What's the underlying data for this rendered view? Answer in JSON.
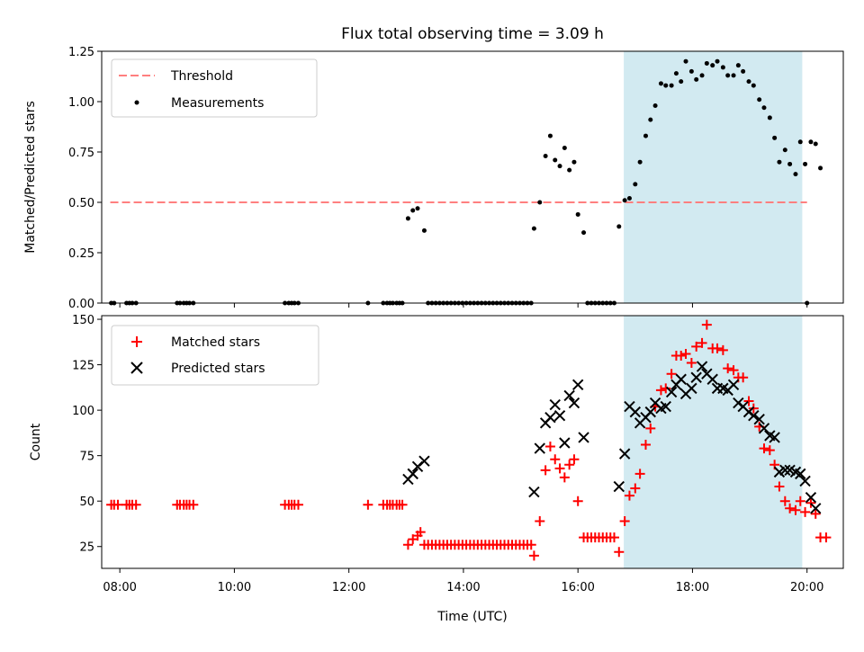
{
  "title": "Flux total observing time = 3.09 h",
  "colors": {
    "threshold": "#ff7f7f",
    "measurement": "#000000",
    "matched": "#ff0000",
    "predicted": "#000000",
    "shade": "#add8e6"
  },
  "chart_data": [
    {
      "type": "scatter",
      "ylabel": "Matched/Predicted stars",
      "xlabel": "",
      "xlim": [
        "07:41",
        "20:38"
      ],
      "ylim": [
        0,
        1.25
      ],
      "yticks": [
        "0.00",
        "0.25",
        "0.50",
        "0.75",
        "1.00",
        "1.25"
      ],
      "shaded_span": [
        "16:48",
        "19:55"
      ],
      "legend": {
        "placement": "top-left",
        "threshold_label": "Threshold",
        "measurement_label": "Measurements"
      },
      "threshold": {
        "value": 0.5,
        "x_start": "07:50",
        "x_end": "20:00"
      },
      "measurements": [
        [
          "07:51",
          0
        ],
        [
          "07:54",
          0
        ],
        [
          "08:07",
          0
        ],
        [
          "08:10",
          0
        ],
        [
          "08:13",
          0
        ],
        [
          "08:17",
          0
        ],
        [
          "09:00",
          0
        ],
        [
          "09:03",
          0
        ],
        [
          "09:07",
          0
        ],
        [
          "09:10",
          0
        ],
        [
          "09:13",
          0
        ],
        [
          "09:17",
          0
        ],
        [
          "10:53",
          0
        ],
        [
          "10:57",
          0
        ],
        [
          "11:00",
          0
        ],
        [
          "11:03",
          0
        ],
        [
          "11:07",
          0
        ],
        [
          "12:20",
          0
        ],
        [
          "12:36",
          0
        ],
        [
          "12:40",
          0
        ],
        [
          "12:43",
          0
        ],
        [
          "12:46",
          0
        ],
        [
          "12:50",
          0
        ],
        [
          "12:53",
          0
        ],
        [
          "12:56",
          0
        ],
        [
          "13:02",
          0.42
        ],
        [
          "13:07",
          0.46
        ],
        [
          "13:12",
          0.47
        ],
        [
          "13:19",
          0.36
        ],
        [
          "13:23",
          0
        ],
        [
          "13:27",
          0
        ],
        [
          "13:31",
          0
        ],
        [
          "13:35",
          0
        ],
        [
          "13:39",
          0
        ],
        [
          "13:43",
          0
        ],
        [
          "13:47",
          0
        ],
        [
          "13:51",
          0
        ],
        [
          "13:55",
          0
        ],
        [
          "13:59",
          0
        ],
        [
          "14:03",
          0
        ],
        [
          "14:07",
          0
        ],
        [
          "14:11",
          0
        ],
        [
          "14:15",
          0
        ],
        [
          "14:19",
          0
        ],
        [
          "14:23",
          0
        ],
        [
          "14:27",
          0
        ],
        [
          "14:31",
          0
        ],
        [
          "14:35",
          0
        ],
        [
          "14:39",
          0
        ],
        [
          "14:43",
          0
        ],
        [
          "14:47",
          0
        ],
        [
          "14:51",
          0
        ],
        [
          "14:55",
          0
        ],
        [
          "14:59",
          0
        ],
        [
          "15:03",
          0
        ],
        [
          "15:07",
          0
        ],
        [
          "15:11",
          0
        ],
        [
          "15:14",
          0.37
        ],
        [
          "15:20",
          0.5
        ],
        [
          "15:26",
          0.73
        ],
        [
          "15:31",
          0.83
        ],
        [
          "15:36",
          0.71
        ],
        [
          "15:41",
          0.68
        ],
        [
          "15:46",
          0.77
        ],
        [
          "15:51",
          0.66
        ],
        [
          "15:56",
          0.7
        ],
        [
          "16:00",
          0.44
        ],
        [
          "16:06",
          0.35
        ],
        [
          "16:10",
          0
        ],
        [
          "16:14",
          0
        ],
        [
          "16:18",
          0
        ],
        [
          "16:22",
          0
        ],
        [
          "16:26",
          0
        ],
        [
          "16:30",
          0
        ],
        [
          "16:34",
          0
        ],
        [
          "16:38",
          0
        ],
        [
          "16:43",
          0.38
        ],
        [
          "16:49",
          0.51
        ],
        [
          "16:54",
          0.52
        ],
        [
          "17:00",
          0.59
        ],
        [
          "17:05",
          0.7
        ],
        [
          "17:11",
          0.83
        ],
        [
          "17:16",
          0.91
        ],
        [
          "17:21",
          0.98
        ],
        [
          "17:27",
          1.09
        ],
        [
          "17:32",
          1.08
        ],
        [
          "17:38",
          1.08
        ],
        [
          "17:43",
          1.14
        ],
        [
          "17:48",
          1.1
        ],
        [
          "17:53",
          1.2
        ],
        [
          "17:59",
          1.15
        ],
        [
          "18:04",
          1.11
        ],
        [
          "18:10",
          1.13
        ],
        [
          "18:15",
          1.19
        ],
        [
          "18:21",
          1.18
        ],
        [
          "18:26",
          1.2
        ],
        [
          "18:32",
          1.17
        ],
        [
          "18:37",
          1.13
        ],
        [
          "18:43",
          1.13
        ],
        [
          "18:48",
          1.18
        ],
        [
          "18:53",
          1.15
        ],
        [
          "18:59",
          1.1
        ],
        [
          "19:04",
          1.08
        ],
        [
          "19:10",
          1.01
        ],
        [
          "19:15",
          0.97
        ],
        [
          "19:21",
          0.92
        ],
        [
          "19:26",
          0.82
        ],
        [
          "19:31",
          0.7
        ],
        [
          "19:37",
          0.76
        ],
        [
          "19:42",
          0.69
        ],
        [
          "19:48",
          0.64
        ],
        [
          "19:53",
          0.8
        ],
        [
          "19:58",
          0.69
        ],
        [
          "20:04",
          0.8
        ],
        [
          "20:09",
          0.79
        ],
        [
          "20:14",
          0.67
        ],
        [
          "20:00",
          0
        ]
      ]
    },
    {
      "type": "scatter",
      "xlabel": "Time (UTC)",
      "ylabel": "Count",
      "xlim": [
        "07:41",
        "20:38"
      ],
      "ylim": [
        13,
        152
      ],
      "xticks": [
        "08:00",
        "10:00",
        "12:00",
        "14:00",
        "16:00",
        "18:00",
        "20:00"
      ],
      "yticks": [
        "25",
        "50",
        "75",
        "100",
        "125",
        "150"
      ],
      "shaded_span": [
        "16:48",
        "19:55"
      ],
      "legend": {
        "placement": "top-left",
        "matched_label": "Matched stars",
        "predicted_label": "Predicted stars"
      },
      "matched": [
        [
          "07:51",
          48
        ],
        [
          "07:54",
          48
        ],
        [
          "07:58",
          48
        ],
        [
          "08:07",
          48
        ],
        [
          "08:10",
          48
        ],
        [
          "08:13",
          48
        ],
        [
          "08:17",
          48
        ],
        [
          "09:00",
          48
        ],
        [
          "09:03",
          48
        ],
        [
          "09:07",
          48
        ],
        [
          "09:10",
          48
        ],
        [
          "09:13",
          48
        ],
        [
          "09:17",
          48
        ],
        [
          "10:53",
          48
        ],
        [
          "10:57",
          48
        ],
        [
          "11:00",
          48
        ],
        [
          "11:03",
          48
        ],
        [
          "11:07",
          48
        ],
        [
          "12:20",
          48
        ],
        [
          "12:36",
          48
        ],
        [
          "12:40",
          48
        ],
        [
          "12:43",
          48
        ],
        [
          "12:46",
          48
        ],
        [
          "12:50",
          48
        ],
        [
          "12:53",
          48
        ],
        [
          "12:56",
          48
        ],
        [
          "13:02",
          26
        ],
        [
          "13:07",
          29
        ],
        [
          "13:12",
          31
        ],
        [
          "13:15",
          33
        ],
        [
          "13:19",
          26
        ],
        [
          "13:23",
          26
        ],
        [
          "13:27",
          26
        ],
        [
          "13:31",
          26
        ],
        [
          "13:35",
          26
        ],
        [
          "13:39",
          26
        ],
        [
          "13:43",
          26
        ],
        [
          "13:47",
          26
        ],
        [
          "13:51",
          26
        ],
        [
          "13:55",
          26
        ],
        [
          "13:59",
          26
        ],
        [
          "14:03",
          26
        ],
        [
          "14:07",
          26
        ],
        [
          "14:11",
          26
        ],
        [
          "14:15",
          26
        ],
        [
          "14:19",
          26
        ],
        [
          "14:23",
          26
        ],
        [
          "14:27",
          26
        ],
        [
          "14:31",
          26
        ],
        [
          "14:35",
          26
        ],
        [
          "14:39",
          26
        ],
        [
          "14:43",
          26
        ],
        [
          "14:47",
          26
        ],
        [
          "14:51",
          26
        ],
        [
          "14:55",
          26
        ],
        [
          "14:59",
          26
        ],
        [
          "15:03",
          26
        ],
        [
          "15:07",
          26
        ],
        [
          "15:11",
          26
        ],
        [
          "15:14",
          20
        ],
        [
          "15:20",
          39
        ],
        [
          "15:26",
          67
        ],
        [
          "15:31",
          80
        ],
        [
          "15:36",
          73
        ],
        [
          "15:41",
          68
        ],
        [
          "15:46",
          63
        ],
        [
          "15:51",
          70
        ],
        [
          "15:56",
          73
        ],
        [
          "16:00",
          50
        ],
        [
          "16:06",
          30
        ],
        [
          "16:10",
          30
        ],
        [
          "16:14",
          30
        ],
        [
          "16:18",
          30
        ],
        [
          "16:22",
          30
        ],
        [
          "16:26",
          30
        ],
        [
          "16:30",
          30
        ],
        [
          "16:34",
          30
        ],
        [
          "16:38",
          30
        ],
        [
          "16:43",
          22
        ],
        [
          "16:49",
          39
        ],
        [
          "16:54",
          53
        ],
        [
          "17:00",
          57
        ],
        [
          "17:05",
          65
        ],
        [
          "17:11",
          81
        ],
        [
          "17:16",
          90
        ],
        [
          "17:21",
          102
        ],
        [
          "17:27",
          111
        ],
        [
          "17:32",
          112
        ],
        [
          "17:38",
          120
        ],
        [
          "17:43",
          130
        ],
        [
          "17:48",
          130
        ],
        [
          "17:53",
          131
        ],
        [
          "17:59",
          126
        ],
        [
          "18:04",
          135
        ],
        [
          "18:10",
          137
        ],
        [
          "18:15",
          147
        ],
        [
          "18:21",
          134
        ],
        [
          "18:26",
          134
        ],
        [
          "18:32",
          133
        ],
        [
          "18:37",
          123
        ],
        [
          "18:43",
          122
        ],
        [
          "18:48",
          118
        ],
        [
          "18:53",
          118
        ],
        [
          "18:59",
          105
        ],
        [
          "19:04",
          101
        ],
        [
          "19:10",
          91
        ],
        [
          "19:15",
          79
        ],
        [
          "19:21",
          78
        ],
        [
          "19:26",
          70
        ],
        [
          "19:31",
          58
        ],
        [
          "19:37",
          50
        ],
        [
          "19:42",
          46
        ],
        [
          "19:48",
          45
        ],
        [
          "19:53",
          50
        ],
        [
          "19:58",
          44
        ],
        [
          "20:04",
          49
        ],
        [
          "20:09",
          43
        ],
        [
          "20:14",
          30
        ],
        [
          "20:20",
          30
        ]
      ],
      "predicted": [
        [
          "13:02",
          62
        ],
        [
          "13:07",
          65
        ],
        [
          "13:12",
          69
        ],
        [
          "13:19",
          72
        ],
        [
          "15:14",
          55
        ],
        [
          "15:20",
          79
        ],
        [
          "15:26",
          93
        ],
        [
          "15:31",
          96
        ],
        [
          "15:36",
          103
        ],
        [
          "15:41",
          97
        ],
        [
          "15:46",
          82
        ],
        [
          "15:51",
          108
        ],
        [
          "15:56",
          104
        ],
        [
          "16:00",
          114
        ],
        [
          "16:06",
          85
        ],
        [
          "16:43",
          58
        ],
        [
          "16:49",
          76
        ],
        [
          "16:54",
          102
        ],
        [
          "17:00",
          99
        ],
        [
          "17:05",
          93
        ],
        [
          "17:11",
          96
        ],
        [
          "17:16",
          99
        ],
        [
          "17:21",
          104
        ],
        [
          "17:27",
          101
        ],
        [
          "17:32",
          102
        ],
        [
          "17:38",
          110
        ],
        [
          "17:43",
          114
        ],
        [
          "17:48",
          117
        ],
        [
          "17:53",
          109
        ],
        [
          "17:59",
          112
        ],
        [
          "18:04",
          118
        ],
        [
          "18:10",
          124
        ],
        [
          "18:15",
          120
        ],
        [
          "18:21",
          117
        ],
        [
          "18:26",
          112
        ],
        [
          "18:32",
          112
        ],
        [
          "18:37",
          111
        ],
        [
          "18:43",
          114
        ],
        [
          "18:48",
          104
        ],
        [
          "18:53",
          102
        ],
        [
          "18:59",
          99
        ],
        [
          "19:04",
          97
        ],
        [
          "19:10",
          95
        ],
        [
          "19:15",
          90
        ],
        [
          "19:21",
          86
        ],
        [
          "19:26",
          85
        ],
        [
          "19:31",
          66
        ],
        [
          "19:37",
          67
        ],
        [
          "19:42",
          67
        ],
        [
          "19:48",
          66
        ],
        [
          "19:53",
          65
        ],
        [
          "19:58",
          61
        ],
        [
          "20:04",
          52
        ],
        [
          "20:09",
          46
        ]
      ]
    }
  ]
}
